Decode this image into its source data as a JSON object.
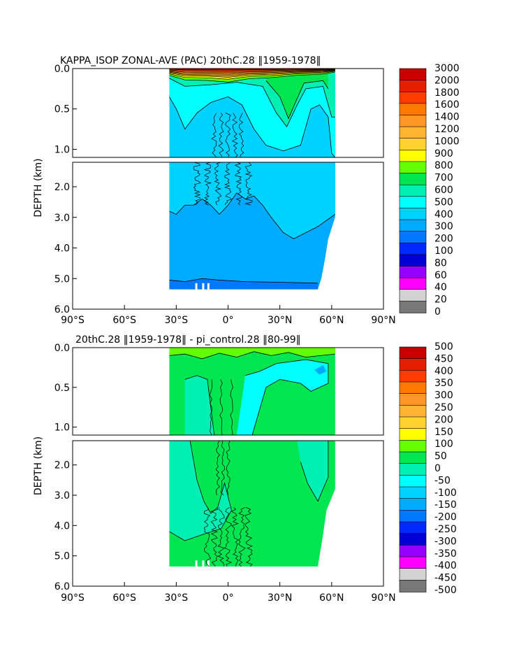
{
  "chart_data": [
    {
      "type": "heatmap",
      "title": "KAPPA_ISOP ZONAL-AVE (PAC) 20thC.28 ‖1959-1978‖",
      "ylabel": "DEPTH (km)",
      "xlabel": "",
      "x_ticks": [
        "90°S",
        "60°S",
        "30°S",
        "0°",
        "30°N",
        "60°N",
        "90°N"
      ],
      "y_ticks_upper": [
        "0.0",
        "0.5",
        "1.0"
      ],
      "y_ticks_lower": [
        "2.0",
        "3.0",
        "4.0",
        "5.0",
        "6.0"
      ],
      "xlim": [
        -90,
        90
      ],
      "ylim_upper": [
        0,
        1.1
      ],
      "ylim_lower": [
        1.2,
        6.0
      ],
      "colorbar_labels": [
        "3000",
        "2000",
        "1800",
        "1600",
        "1400",
        "1200",
        "1000",
        "900",
        "800",
        "700",
        "600",
        "500",
        "400",
        "300",
        "200",
        "100",
        "80",
        "60",
        "40",
        "20",
        "0"
      ],
      "colorbar_colors": [
        "#c80000",
        "#e61e00",
        "#ff3c00",
        "#ff7800",
        "#ff9628",
        "#ffb432",
        "#ffd232",
        "#ffff00",
        "#64ff00",
        "#00e650",
        "#00f0b4",
        "#00ffff",
        "#00d2ff",
        "#00aaff",
        "#0078ff",
        "#0028ff",
        "#0000d2",
        "#9600ff",
        "#ff00ff",
        "#d2d2d2",
        "#787878"
      ]
    },
    {
      "type": "heatmap",
      "title": "20thC.28 ‖1959-1978‖ - pi_control.28 ‖80-99‖",
      "ylabel": "DEPTH (km)",
      "xlabel": "",
      "x_ticks": [
        "90°S",
        "60°S",
        "30°S",
        "0°",
        "30°N",
        "60°N",
        "90°N"
      ],
      "y_ticks_upper": [
        "0.0",
        "0.5",
        "1.0"
      ],
      "y_ticks_lower": [
        "2.0",
        "3.0",
        "4.0",
        "5.0",
        "6.0"
      ],
      "xlim": [
        -90,
        90
      ],
      "ylim_upper": [
        0,
        1.1
      ],
      "ylim_lower": [
        1.2,
        6.0
      ],
      "colorbar_labels": [
        "500",
        "450",
        "400",
        "350",
        "300",
        "250",
        "200",
        "150",
        "100",
        "50",
        "0",
        "-50",
        "-100",
        "-150",
        "-200",
        "-250",
        "-300",
        "-350",
        "-400",
        "-450",
        "-500"
      ],
      "colorbar_colors": [
        "#c80000",
        "#e61e00",
        "#ff3c00",
        "#ff7800",
        "#ff9628",
        "#ffb432",
        "#ffd232",
        "#ffff00",
        "#64ff00",
        "#00e650",
        "#00f0b4",
        "#00ffff",
        "#00d2ff",
        "#00aaff",
        "#0078ff",
        "#0028ff",
        "#0000d2",
        "#9600ff",
        "#ff00ff",
        "#d2d2d2",
        "#787878"
      ]
    }
  ]
}
